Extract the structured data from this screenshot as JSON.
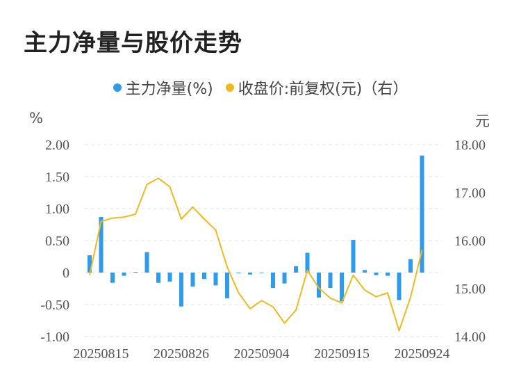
{
  "title": "主力净量与股价走势",
  "chart_data": {
    "type": "bar+line",
    "legend": [
      {
        "label": "主力净量(%)",
        "color": "#2f9bea"
      },
      {
        "label": "收盘价:前复权(元)（右）",
        "color": "#f0b91d"
      }
    ],
    "y_left_unit": "%",
    "y_right_unit": "元",
    "y_left_ticks": [
      "2.00",
      "1.50",
      "1.00",
      "0.50",
      "0",
      "-0.50",
      "-1.00"
    ],
    "y_right_ticks": [
      "18.00",
      "17.00",
      "16.00",
      "15.00",
      "14.00"
    ],
    "y_left_range": [
      -1.0,
      2.0
    ],
    "y_right_range": [
      14.0,
      18.0
    ],
    "x_tick_labels": [
      "20250815",
      "20250826",
      "20250904",
      "20250915",
      "20250924"
    ],
    "x_tick_indices": [
      1,
      8,
      15,
      22,
      29
    ],
    "grid": true,
    "series": [
      {
        "name": "主力净量(%)",
        "type": "bar",
        "axis": "left",
        "values": [
          0.27,
          0.87,
          -0.16,
          -0.05,
          0.01,
          0.32,
          -0.16,
          -0.14,
          -0.53,
          -0.22,
          -0.1,
          -0.2,
          -0.4,
          -0.01,
          -0.03,
          0.0,
          -0.24,
          -0.17,
          0.1,
          0.31,
          -0.39,
          -0.24,
          -0.45,
          0.51,
          0.04,
          -0.04,
          -0.05,
          -0.43,
          0.21,
          1.83
        ]
      },
      {
        "name": "收盘价:前复权(元)（右）",
        "type": "line",
        "axis": "right",
        "values": [
          15.28,
          16.4,
          16.47,
          16.49,
          16.55,
          17.17,
          17.3,
          17.12,
          16.45,
          16.7,
          16.45,
          16.22,
          15.45,
          14.91,
          14.58,
          14.75,
          14.62,
          14.28,
          14.55,
          15.38,
          15.01,
          14.8,
          14.7,
          15.28,
          14.97,
          14.83,
          14.91,
          14.12,
          14.82,
          15.8
        ]
      }
    ]
  }
}
